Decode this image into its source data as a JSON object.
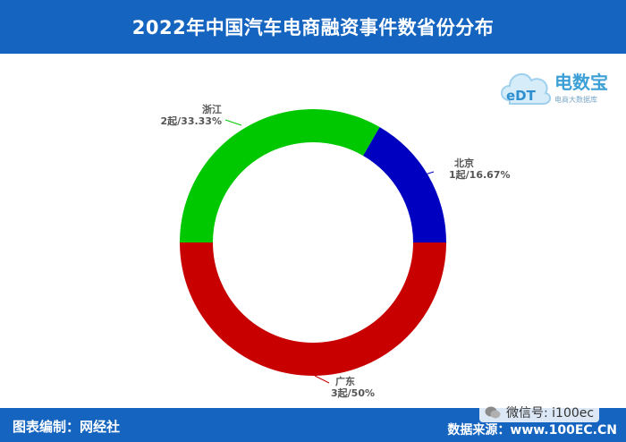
{
  "header": {
    "title": "2022年中国汽车电商融资事件数省份分布"
  },
  "footer": {
    "left_text": "图表编制：网经社",
    "right_text": "数据来源：www.100EC.CN"
  },
  "wechat": {
    "text": "微信号: i100ec"
  },
  "logo": {
    "brand": "电数宝",
    "sub": "电商大数据库",
    "mark": "eDT"
  },
  "colors": {
    "header_bg": "#1565c0",
    "green": "#00c800",
    "blue": "#0000c0",
    "red": "#c80000"
  },
  "chart_data": {
    "type": "pie",
    "donut": true,
    "slices": [
      {
        "name": "北京",
        "value": 1,
        "label_line1": "北京",
        "label_line2": "1起/16.67%",
        "color": "#0000c0"
      },
      {
        "name": "广东",
        "value": 3,
        "label_line1": "广东",
        "label_line2": "3起/50%",
        "color": "#c80000"
      },
      {
        "name": "浙江",
        "value": 2,
        "label_line1": "浙江",
        "label_line2": "2起/33.33%",
        "color": "#00c800"
      }
    ]
  }
}
